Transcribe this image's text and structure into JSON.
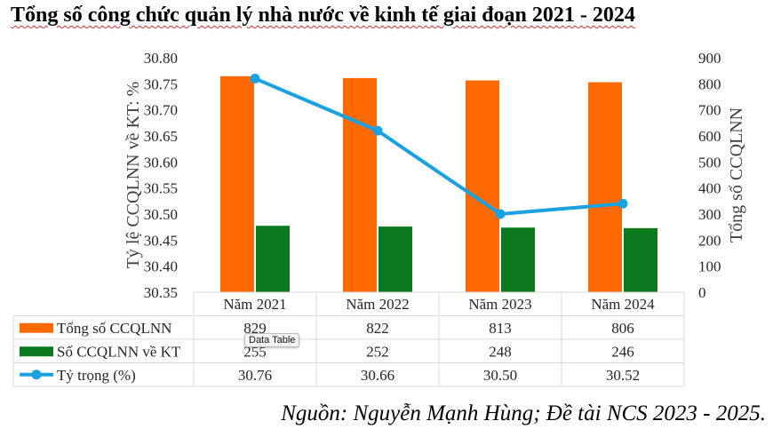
{
  "title": "Tổng số công chức quản lý nhà nước về kinh tế giai đoạn 2021 - 2024",
  "source": "Nguồn: Nguyễn Mạnh Hùng; Đề tài NCS 2023 - 2025.",
  "tooltip": "Data Table",
  "colors": {
    "total": "#FF6A00",
    "econ": "#0B7A1E",
    "ratio": "#1AA1E0",
    "grid": "#D9D9D9",
    "axis": "#7f7f7f"
  },
  "chart_data": {
    "type": "bar",
    "categories": [
      "Năm 2021",
      "Năm 2022",
      "Năm 2023",
      "Năm 2024"
    ],
    "series": [
      {
        "name": "Tổng số CCQLNN",
        "kind": "bar",
        "axis": "right",
        "values": [
          829,
          822,
          813,
          806
        ]
      },
      {
        "name": "Số CCQLNN về KT",
        "kind": "bar",
        "axis": "right",
        "values": [
          255,
          252,
          248,
          246
        ]
      },
      {
        "name": "Tỷ trọng (%)",
        "kind": "line",
        "axis": "left",
        "values": [
          30.76,
          30.66,
          30.5,
          30.52
        ]
      }
    ],
    "table_values": [
      [
        "829",
        "822",
        "813",
        "806"
      ],
      [
        "255",
        "252",
        "248",
        "246"
      ],
      [
        "30.76",
        "30.66",
        "30.50",
        "30.52"
      ]
    ],
    "ylabel_left": "Tỷ lệ CCQLNN về KT: %",
    "ylabel_right": "Tổng số CCQLNN",
    "ylim_left": [
      30.35,
      30.8
    ],
    "yticks_left": [
      "30.80",
      "30.75",
      "30.70",
      "30.65",
      "30.60",
      "30.55",
      "30.50",
      "30.45",
      "30.40",
      "30.35"
    ],
    "ylim_right": [
      0,
      900
    ],
    "yticks_right": [
      "900",
      "800",
      "700",
      "600",
      "500",
      "400",
      "300",
      "200",
      "100",
      "0"
    ],
    "grid": false,
    "legend": "data table"
  }
}
